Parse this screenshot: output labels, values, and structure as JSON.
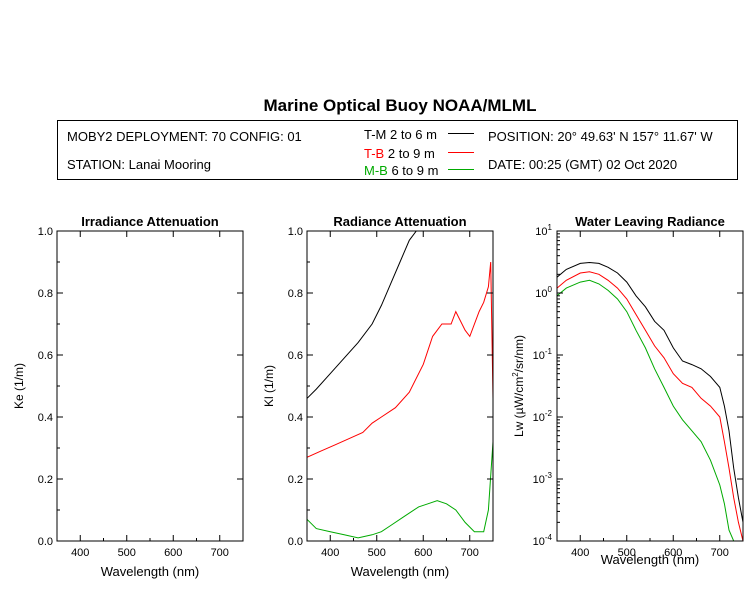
{
  "header": {
    "title": "Marine Optical Buoy NOAA/MLML",
    "deployment": "MOBY2 DEPLOYMENT: 70 CONFIG: 01",
    "station": "STATION: Lanai Mooring",
    "position": "POSITION: 20° 49.63' N   157° 11.67' W",
    "date": "DATE: 00:25 (GMT) 02 Oct 2020",
    "legend": [
      {
        "prefix": "T-M",
        "range": "2 to 6  m",
        "color": "#000000"
      },
      {
        "prefix": "T-B",
        "range": "2 to 9  m",
        "color": "#ff0000"
      },
      {
        "prefix": "M-B",
        "range": "6 to 9  m",
        "color": "#00aa00"
      }
    ]
  },
  "chart_data": [
    {
      "type": "line",
      "title": "Irradiance Attenuation",
      "xlabel": "Wavelength (nm)",
      "ylabel": "Ke  (1/m)",
      "xlim": [
        350,
        750
      ],
      "ylim": [
        0.0,
        1.0
      ],
      "xticks": [
        "400",
        "500",
        "600",
        "700"
      ],
      "yticks": [
        "0.0",
        "0.2",
        "0.4",
        "0.6",
        "0.8",
        "1.0"
      ],
      "series": []
    },
    {
      "type": "line",
      "title": "Radiance Attenuation",
      "xlabel": "Wavelength (nm)",
      "ylabel": "Kl  (1/m)",
      "xlim": [
        350,
        750
      ],
      "ylim": [
        0.0,
        1.0
      ],
      "xticks": [
        "400",
        "500",
        "600",
        "700"
      ],
      "yticks": [
        "0.0",
        "0.2",
        "0.4",
        "0.6",
        "0.8",
        "1.0"
      ],
      "series": [
        {
          "color": "#000000",
          "x": [
            350,
            370,
            400,
            430,
            460,
            490,
            510,
            530,
            550,
            570,
            585
          ],
          "y": [
            0.46,
            0.49,
            0.54,
            0.59,
            0.64,
            0.7,
            0.76,
            0.83,
            0.9,
            0.97,
            1.0
          ]
        },
        {
          "color": "#ff0000",
          "x": [
            350,
            380,
            410,
            440,
            470,
            490,
            510,
            540,
            570,
            600,
            620,
            640,
            660,
            670,
            690,
            700,
            720,
            730,
            740,
            745,
            750
          ],
          "y": [
            0.27,
            0.29,
            0.31,
            0.33,
            0.35,
            0.38,
            0.4,
            0.43,
            0.48,
            0.57,
            0.66,
            0.7,
            0.7,
            0.74,
            0.68,
            0.66,
            0.74,
            0.77,
            0.82,
            0.9,
            0.46
          ]
        },
        {
          "color": "#00aa00",
          "x": [
            350,
            370,
            400,
            430,
            460,
            490,
            510,
            530,
            560,
            590,
            610,
            630,
            650,
            670,
            690,
            710,
            730,
            740,
            750
          ],
          "y": [
            0.07,
            0.04,
            0.03,
            0.02,
            0.01,
            0.02,
            0.03,
            0.05,
            0.08,
            0.11,
            0.12,
            0.13,
            0.12,
            0.1,
            0.06,
            0.03,
            0.03,
            0.1,
            0.32
          ]
        }
      ]
    },
    {
      "type": "line",
      "title": "Water Leaving Radiance",
      "xlabel": "Wavelength (nm)",
      "ylabel": "Lw  (µW/cm²/sr/nm)",
      "ylabel_parts": {
        "pre": "Lw  (",
        "mu": "µ",
        "mid": "W/cm",
        "sup": "2",
        "post": "/sr/nm)"
      },
      "xlim": [
        350,
        750
      ],
      "ylim": [
        0.0001,
        10
      ],
      "yscale": "log",
      "xticks": [
        "400",
        "500",
        "600",
        "700"
      ],
      "yticks": [
        {
          "base": "10",
          "exp": "1"
        },
        {
          "base": "10",
          "exp": "0"
        },
        {
          "base": "10",
          "exp": "-1"
        },
        {
          "base": "10",
          "exp": "-2"
        },
        {
          "base": "10",
          "exp": "-3"
        },
        {
          "base": "10",
          "exp": "-4"
        }
      ],
      "series": [
        {
          "color": "#000000",
          "x": [
            350,
            370,
            400,
            420,
            440,
            460,
            480,
            500,
            520,
            540,
            560,
            580,
            600,
            620,
            640,
            660,
            680,
            700,
            710,
            720,
            730,
            740,
            750
          ],
          "y": [
            1.8,
            2.4,
            3.0,
            3.1,
            3.0,
            2.6,
            2.1,
            1.5,
            0.9,
            0.6,
            0.35,
            0.25,
            0.13,
            0.08,
            0.07,
            0.06,
            0.045,
            0.03,
            0.015,
            0.006,
            0.0015,
            0.0005,
            0.0002
          ]
        },
        {
          "color": "#ff0000",
          "x": [
            350,
            370,
            400,
            420,
            440,
            460,
            480,
            500,
            520,
            540,
            560,
            580,
            600,
            620,
            640,
            660,
            680,
            700,
            710,
            720,
            730,
            740,
            750
          ],
          "y": [
            1.2,
            1.6,
            2.1,
            2.2,
            2.0,
            1.6,
            1.2,
            0.8,
            0.45,
            0.25,
            0.14,
            0.09,
            0.05,
            0.035,
            0.03,
            0.02,
            0.015,
            0.01,
            0.004,
            0.0015,
            0.0005,
            0.0002,
            0.0001
          ]
        },
        {
          "color": "#00aa00",
          "x": [
            350,
            370,
            400,
            420,
            440,
            460,
            480,
            500,
            520,
            540,
            560,
            580,
            600,
            620,
            640,
            660,
            680,
            700,
            710,
            720,
            730
          ],
          "y": [
            0.9,
            1.2,
            1.5,
            1.6,
            1.4,
            1.1,
            0.8,
            0.5,
            0.25,
            0.13,
            0.06,
            0.03,
            0.015,
            0.009,
            0.006,
            0.004,
            0.002,
            0.0008,
            0.0004,
            0.00015,
            0.0001
          ]
        }
      ]
    }
  ]
}
